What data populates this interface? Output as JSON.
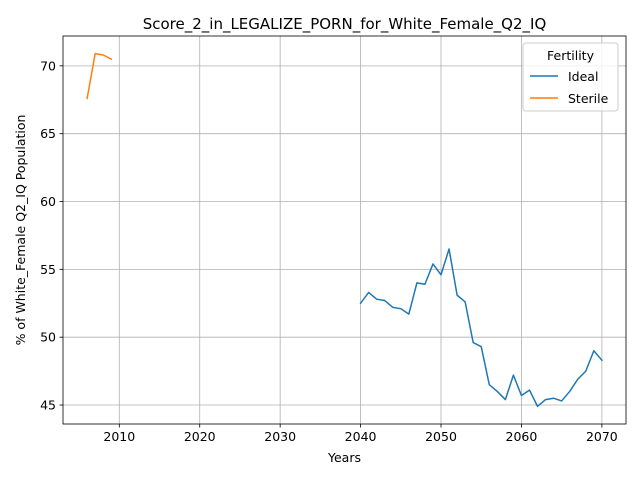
{
  "chart_data": {
    "type": "line",
    "title": "Score_2_in_LEGALIZE_PORN_for_White_Female_Q2_IQ",
    "xlabel": "Years",
    "ylabel": "% of White_Female Q2_IQ Population",
    "xlim": [
      2003,
      2073
    ],
    "ylim": [
      43.6,
      72.2
    ],
    "xticks": [
      2010,
      2020,
      2030,
      2040,
      2050,
      2060,
      2070
    ],
    "yticks": [
      45,
      50,
      55,
      60,
      65,
      70
    ],
    "grid": true,
    "legend": {
      "title": "Fertility",
      "placement": "top-right"
    },
    "series": [
      {
        "name": "Ideal",
        "color": "#1f77b4",
        "x": [
          2040,
          2041,
          2042,
          2043,
          2044,
          2045,
          2046,
          2047,
          2048,
          2049,
          2050,
          2051,
          2052,
          2053,
          2054,
          2055,
          2056,
          2057,
          2058,
          2059,
          2060,
          2061,
          2062,
          2063,
          2064,
          2065,
          2066,
          2067,
          2068,
          2069,
          2070
        ],
        "y": [
          52.5,
          53.3,
          52.8,
          52.7,
          52.2,
          52.1,
          51.7,
          54.0,
          53.9,
          55.4,
          54.6,
          56.5,
          53.1,
          52.6,
          49.6,
          49.3,
          46.5,
          46.0,
          45.4,
          47.2,
          45.7,
          46.1,
          44.9,
          45.4,
          45.5,
          45.3,
          46.0,
          46.9,
          47.5,
          49.0,
          48.3
        ]
      },
      {
        "name": "Sterile",
        "color": "#ff7f0e",
        "x": [
          2006,
          2007,
          2008,
          2009
        ],
        "y": [
          67.6,
          70.9,
          70.8,
          70.5
        ]
      }
    ]
  }
}
